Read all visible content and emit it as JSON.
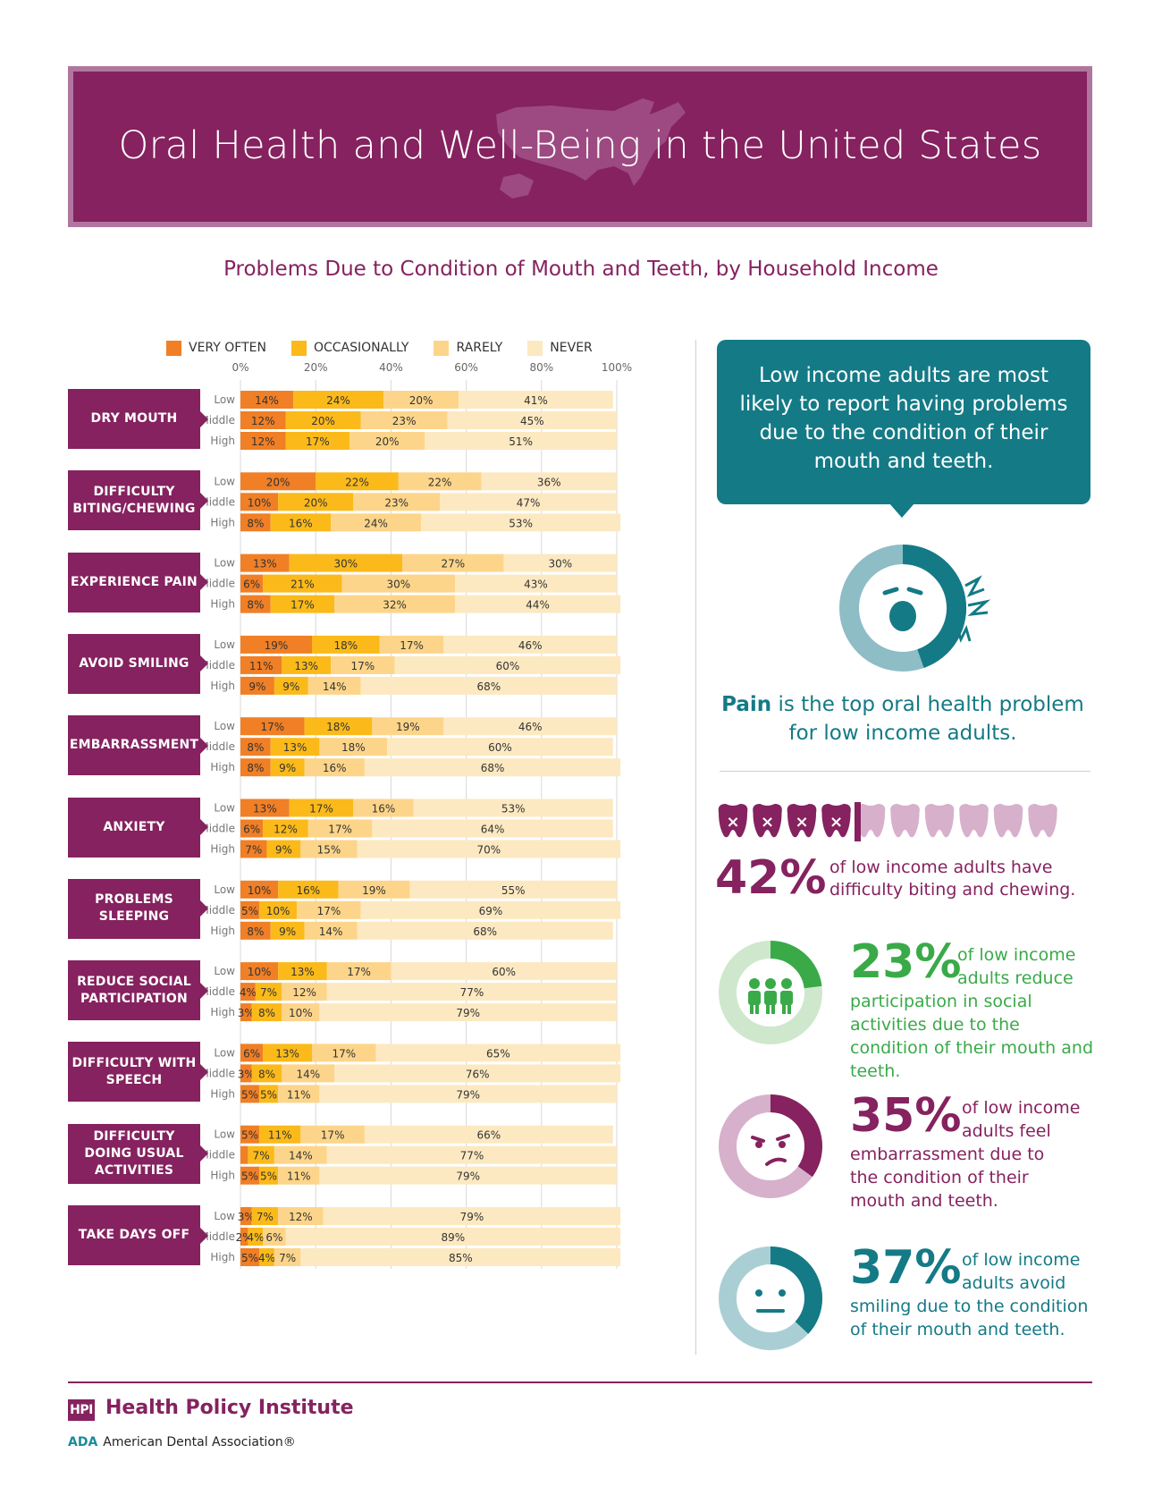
{
  "header": {
    "title": "Oral Health and Well-Being in the United States",
    "subtitle": "Problems Due to Condition of Mouth and Teeth, by Household Income"
  },
  "legend": [
    {
      "label": "VERY OFTEN",
      "color": "#f07f26"
    },
    {
      "label": "OCCASIONALLY",
      "color": "#fbba1a"
    },
    {
      "label": "RARELY",
      "color": "#fdd58a"
    },
    {
      "label": "NEVER",
      "color": "#fde9c1"
    }
  ],
  "chart_data": {
    "type": "bar",
    "orientation": "horizontal",
    "stacked": true,
    "xlim": [
      0,
      100
    ],
    "x_ticks": [
      "0%",
      "20%",
      "40%",
      "60%",
      "80%",
      "100%"
    ],
    "series_names": [
      "VERY OFTEN",
      "OCCASIONALLY",
      "RARELY",
      "NEVER"
    ],
    "colors": [
      "#f07f26",
      "#fbba1a",
      "#fdd58a",
      "#fde9c1"
    ],
    "income_levels": [
      "Low",
      "Middle",
      "High"
    ],
    "categories": [
      {
        "label": "DRY MOUTH",
        "rows": [
          [
            14,
            24,
            20,
            41
          ],
          [
            12,
            20,
            23,
            45
          ],
          [
            12,
            17,
            20,
            51
          ]
        ]
      },
      {
        "label": "DIFFICULTY BITING/CHEWING",
        "rows": [
          [
            20,
            22,
            22,
            36
          ],
          [
            10,
            20,
            23,
            47
          ],
          [
            8,
            16,
            24,
            53
          ]
        ]
      },
      {
        "label": "EXPERIENCE PAIN",
        "rows": [
          [
            13,
            30,
            27,
            30
          ],
          [
            6,
            21,
            30,
            43
          ],
          [
            8,
            17,
            32,
            44
          ]
        ]
      },
      {
        "label": "AVOID SMILING",
        "rows": [
          [
            19,
            18,
            17,
            46
          ],
          [
            11,
            13,
            17,
            60
          ],
          [
            9,
            9,
            14,
            68
          ]
        ]
      },
      {
        "label": "EMBARRASSMENT",
        "rows": [
          [
            17,
            18,
            19,
            46
          ],
          [
            8,
            13,
            18,
            60
          ],
          [
            8,
            9,
            16,
            68
          ]
        ]
      },
      {
        "label": "ANXIETY",
        "rows": [
          [
            13,
            17,
            16,
            53
          ],
          [
            6,
            12,
            17,
            64
          ],
          [
            7,
            9,
            15,
            70
          ]
        ]
      },
      {
        "label": "PROBLEMS SLEEPING",
        "rows": [
          [
            10,
            16,
            19,
            55
          ],
          [
            5,
            10,
            17,
            69
          ],
          [
            8,
            9,
            14,
            68
          ]
        ]
      },
      {
        "label": "REDUCE SOCIAL PARTICIPATION",
        "rows": [
          [
            10,
            13,
            17,
            60
          ],
          [
            4,
            7,
            12,
            77
          ],
          [
            3,
            8,
            10,
            79
          ]
        ]
      },
      {
        "label": "DIFFICULTY WITH SPEECH",
        "rows": [
          [
            6,
            13,
            17,
            65
          ],
          [
            3,
            8,
            14,
            76
          ],
          [
            5,
            5,
            11,
            79
          ]
        ]
      },
      {
        "label": "DIFFICULTY DOING USUAL ACTIVITIES",
        "rows": [
          [
            5,
            11,
            17,
            66
          ],
          [
            2,
            7,
            14,
            77
          ],
          [
            5,
            5,
            11,
            79
          ]
        ]
      },
      {
        "label": "TAKE DAYS OFF",
        "rows": [
          [
            3,
            7,
            12,
            79
          ],
          [
            2,
            4,
            6,
            89
          ],
          [
            5,
            4,
            7,
            85
          ]
        ]
      }
    ],
    "hidden_labels": [
      [
        9,
        1,
        0
      ]
    ]
  },
  "callout": {
    "text": "Low income adults are most likely to report having problems due to the condition of their mouth and teeth."
  },
  "pain": {
    "bold": "Pain",
    "rest": " is the top oral health problem for low income adults."
  },
  "stat42": {
    "value": "42%",
    "text": "of low income adults have difficulty biting and chewing.",
    "icons_marked": 4,
    "icons_total": 10
  },
  "stat23": {
    "value": "23%",
    "text_a": "of low income",
    "text_b": "adults reduce",
    "text_c": "participation in social activities due to the condition of their mouth and teeth.",
    "color": "#3aaa49",
    "fraction": 0.23
  },
  "stat35": {
    "value": "35%",
    "text_a": "of low income",
    "text_b": "adults feel",
    "text_c": "embarrassment due to the condition of their mouth and teeth.",
    "color": "#85225f",
    "fraction": 0.35
  },
  "stat37": {
    "value": "37%",
    "text_a": "of low income",
    "text_b": "adults avoid",
    "text_c": "smiling due to the condition of their mouth and teeth.",
    "color": "#147a86",
    "fraction": 0.37
  },
  "footer": {
    "badge": "HPI",
    "org": "Health Policy Institute",
    "ada_abbr": "ADA",
    "ada_name": "American Dental Association®"
  }
}
